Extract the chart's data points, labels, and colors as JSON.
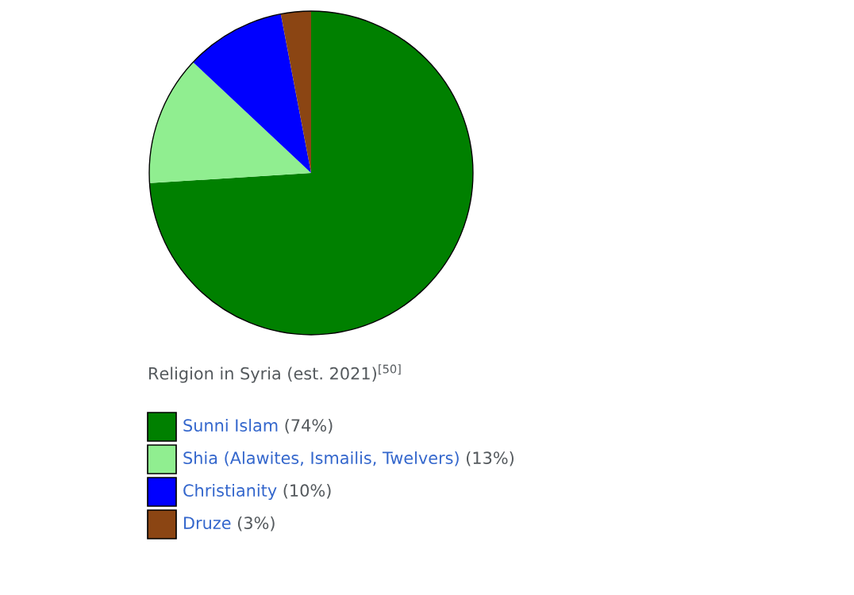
{
  "chart_data": {
    "type": "pie",
    "title": "Religion in Syria (est. 2021)$^{[50]}$",
    "categories": [
      "Sunni Islam",
      "Shia (Alawites, Ismailis, Twelvers)",
      "Christianity",
      "Druze"
    ],
    "values": [
      74,
      13,
      10,
      3
    ],
    "value_labels": [
      "(74%)",
      "(13%)",
      "(10%)",
      "(3%)"
    ],
    "colors": [
      "#008000",
      "#90ee90",
      "#0000ff",
      "#8b4513"
    ],
    "legend": "bottom"
  }
}
